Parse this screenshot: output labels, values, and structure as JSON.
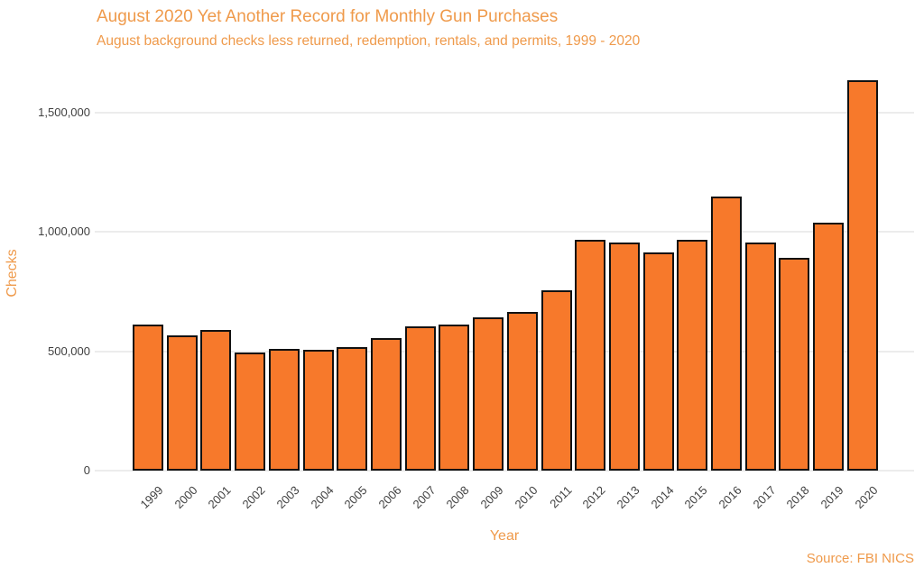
{
  "header": {
    "title": "August 2020 Yet Another Record for Monthly Gun Purchases",
    "subtitle": "August background checks less returned, redemption, rentals, and permits, 1999 - 2020"
  },
  "footer": {
    "source": "Source: FBI NICS"
  },
  "colors": {
    "accent_orange_text": "#EF9A4B",
    "bar_fill": "#F7792B",
    "bar_border": "#111111",
    "gridline": "#ECECEC",
    "tick_text": "#3F3F3F",
    "background": "#FFFFFF"
  },
  "chart_data": {
    "type": "bar",
    "title": "August 2020 Yet Another Record for Monthly Gun Purchases",
    "subtitle": "August background checks less returned, redemption, rentals, and permits, 1999 - 2020",
    "xlabel": "Year",
    "ylabel": "Checks",
    "categories": [
      "1999",
      "2000",
      "2001",
      "2002",
      "2003",
      "2004",
      "2005",
      "2006",
      "2007",
      "2008",
      "2009",
      "2010",
      "2011",
      "2012",
      "2013",
      "2014",
      "2015",
      "2016",
      "2017",
      "2018",
      "2019",
      "2020"
    ],
    "values": [
      611000,
      566000,
      588000,
      494000,
      510000,
      505000,
      518000,
      556000,
      602000,
      610000,
      640000,
      666000,
      754000,
      967000,
      954000,
      915000,
      965000,
      1147000,
      953000,
      890000,
      1038000,
      1633000
    ],
    "ylim": [
      0,
      1650000
    ],
    "yticks": [
      0,
      500000,
      1000000,
      1500000
    ],
    "ytick_labels": [
      "0",
      "500,000",
      "1,000,000",
      "1,500,000"
    ],
    "grid": "horizontal",
    "legend": "none",
    "source": "Source: FBI NICS"
  }
}
